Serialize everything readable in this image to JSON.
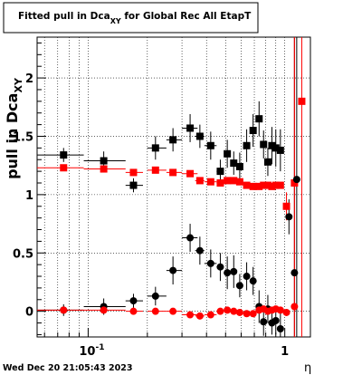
{
  "chart_data": {
    "type": "scatter",
    "title": "Fitted pull in Dca",
    "title_subscript": "XY",
    "title_suffix": " for Global Rec All EtapT",
    "ylabel": "pull in Dca",
    "ylabel_subscript": "XY",
    "xlabel": "η",
    "x_scale": "log",
    "xlim": [
      0.055,
      1.35
    ],
    "ylim": [
      -0.22,
      2.35
    ],
    "grid": true,
    "x_ticks": [
      {
        "value": 0.1,
        "label": "10",
        "exponent": "-1"
      },
      {
        "value": 1,
        "label": "1"
      }
    ],
    "y_ticks": [
      {
        "value": 0,
        "label": "0"
      },
      {
        "value": 0.5,
        "label": "0.5"
      },
      {
        "value": 1,
        "label": "1"
      },
      {
        "value": 1.5,
        "label": "1.5"
      },
      {
        "value": 2,
        "label": "2"
      }
    ],
    "series": [
      {
        "marker": "square",
        "color": "#000000",
        "points": [
          {
            "x": 0.075,
            "y": 1.34,
            "ex": [
              0.055,
              0.095
            ],
            "ey": 0.06
          },
          {
            "x": 0.12,
            "y": 1.29,
            "ex": [
              0.095,
              0.155
            ],
            "ey": 0.08
          },
          {
            "x": 0.17,
            "y": 1.08,
            "ex": [
              0.155,
              0.19
            ],
            "ey": 0.06
          },
          {
            "x": 0.22,
            "y": 1.4,
            "ex": [
              0.2,
              0.25
            ],
            "ey": 0.1
          },
          {
            "x": 0.27,
            "y": 1.47,
            "ex": [
              0.25,
              0.3
            ],
            "ey": 0.1
          },
          {
            "x": 0.33,
            "y": 1.57,
            "ex": [
              0.3,
              0.36
            ],
            "ey": 0.12
          },
          {
            "x": 0.37,
            "y": 1.5,
            "ex": [
              0.35,
              0.39
            ],
            "ey": 0.1
          },
          {
            "x": 0.42,
            "y": 1.42,
            "ex": [
              0.39,
              0.45
            ],
            "ey": 0.12
          },
          {
            "x": 0.47,
            "y": 1.2,
            "ex": [
              0.45,
              0.49
            ],
            "ey": 0.1
          },
          {
            "x": 0.51,
            "y": 1.35,
            "ex": [
              0.49,
              0.53
            ],
            "ey": 0.12
          },
          {
            "x": 0.55,
            "y": 1.27,
            "ex": [
              0.53,
              0.57
            ],
            "ey": 0.1
          },
          {
            "x": 0.59,
            "y": 1.24,
            "ex": [
              0.57,
              0.61
            ],
            "ey": 0.12
          },
          {
            "x": 0.64,
            "y": 1.42,
            "ex": [
              0.62,
              0.66
            ],
            "ey": 0.14
          },
          {
            "x": 0.69,
            "y": 1.55,
            "ex": [
              0.67,
              0.71
            ],
            "ey": 0.14
          },
          {
            "x": 0.74,
            "y": 1.65,
            "ex": [
              0.72,
              0.76
            ],
            "ey": 0.15
          },
          {
            "x": 0.78,
            "y": 1.43,
            "ex": [
              0.76,
              0.8
            ],
            "ey": 0.12
          },
          {
            "x": 0.82,
            "y": 1.28,
            "ex": [
              0.8,
              0.84
            ],
            "ey": 0.12
          },
          {
            "x": 0.86,
            "y": 1.42,
            "ex": [
              0.84,
              0.88
            ],
            "ey": 0.16
          },
          {
            "x": 0.9,
            "y": 1.4,
            "ex": [
              0.88,
              0.92
            ],
            "ey": 0.16
          },
          {
            "x": 0.95,
            "y": 1.38,
            "ex": [
              0.93,
              0.97
            ],
            "ey": 0.18
          }
        ]
      },
      {
        "marker": "square",
        "color": "#ff0000",
        "points": [
          {
            "x": 0.075,
            "y": 1.23,
            "ex": [
              0.055,
              0.095
            ],
            "ey": 0.01
          },
          {
            "x": 0.12,
            "y": 1.22,
            "ex": [
              0.095,
              0.155
            ],
            "ey": 0.01
          },
          {
            "x": 0.17,
            "y": 1.19,
            "ex": [
              0.155,
              0.19
            ],
            "ey": 0.01
          },
          {
            "x": 0.22,
            "y": 1.21,
            "ex": [
              0.2,
              0.25
            ],
            "ey": 0.01
          },
          {
            "x": 0.27,
            "y": 1.19,
            "ex": [
              0.25,
              0.3
            ],
            "ey": 0.01
          },
          {
            "x": 0.33,
            "y": 1.18,
            "ex": [
              0.3,
              0.36
            ],
            "ey": 0.01
          },
          {
            "x": 0.37,
            "y": 1.12,
            "ex": [
              0.35,
              0.39
            ],
            "ey": 0.01
          },
          {
            "x": 0.42,
            "y": 1.11,
            "ex": [
              0.39,
              0.45
            ],
            "ey": 0.01
          },
          {
            "x": 0.47,
            "y": 1.1,
            "ex": [
              0.45,
              0.49
            ],
            "ey": 0.01
          },
          {
            "x": 0.51,
            "y": 1.12,
            "ex": [
              0.49,
              0.53
            ],
            "ey": 0.01
          },
          {
            "x": 0.55,
            "y": 1.12,
            "ex": [
              0.53,
              0.57
            ],
            "ey": 0.01
          },
          {
            "x": 0.59,
            "y": 1.11,
            "ex": [
              0.57,
              0.61
            ],
            "ey": 0.01
          },
          {
            "x": 0.64,
            "y": 1.08,
            "ex": [
              0.62,
              0.66
            ],
            "ey": 0.01
          },
          {
            "x": 0.69,
            "y": 1.07,
            "ex": [
              0.67,
              0.71
            ],
            "ey": 0.01
          },
          {
            "x": 0.74,
            "y": 1.07,
            "ex": [
              0.72,
              0.76
            ],
            "ey": 0.01
          },
          {
            "x": 0.78,
            "y": 1.08,
            "ex": [
              0.76,
              0.8
            ],
            "ey": 0.01
          },
          {
            "x": 0.82,
            "y": 1.08,
            "ex": [
              0.8,
              0.84
            ],
            "ey": 0.01
          },
          {
            "x": 0.86,
            "y": 1.07,
            "ex": [
              0.84,
              0.88
            ],
            "ey": 0.01
          },
          {
            "x": 0.9,
            "y": 1.08,
            "ex": [
              0.88,
              0.92
            ],
            "ey": 0.01
          },
          {
            "x": 0.95,
            "y": 1.08,
            "ex": [
              0.93,
              0.97
            ],
            "ey": 0.01
          },
          {
            "x": 1.02,
            "y": 0.9,
            "ex": [
              1.0,
              1.04
            ],
            "ey": 0.12
          },
          {
            "x": 1.12,
            "y": 1.1,
            "ex": [
              1.1,
              1.14
            ],
            "ey": 2.5
          },
          {
            "x": 1.22,
            "y": 1.8,
            "ex": [
              1.2,
              1.24
            ],
            "ey": 2.5
          }
        ]
      },
      {
        "marker": "circle",
        "color": "#000000",
        "points": [
          {
            "x": 0.075,
            "y": 0.01,
            "ex": [
              0.055,
              0.095
            ],
            "ey": 0.05
          },
          {
            "x": 0.12,
            "y": 0.04,
            "ex": [
              0.095,
              0.155
            ],
            "ey": 0.07
          },
          {
            "x": 0.17,
            "y": 0.09,
            "ex": [
              0.155,
              0.19
            ],
            "ey": 0.06
          },
          {
            "x": 0.22,
            "y": 0.13,
            "ex": [
              0.2,
              0.25
            ],
            "ey": 0.08
          },
          {
            "x": 0.27,
            "y": 0.35,
            "ex": [
              0.25,
              0.3
            ],
            "ey": 0.12
          },
          {
            "x": 0.33,
            "y": 0.63,
            "ex": [
              0.3,
              0.36
            ],
            "ey": 0.12
          },
          {
            "x": 0.37,
            "y": 0.52,
            "ex": [
              0.35,
              0.39
            ],
            "ey": 0.12
          },
          {
            "x": 0.42,
            "y": 0.41,
            "ex": [
              0.39,
              0.45
            ],
            "ey": 0.12
          },
          {
            "x": 0.47,
            "y": 0.38,
            "ex": [
              0.45,
              0.49
            ],
            "ey": 0.12
          },
          {
            "x": 0.51,
            "y": 0.33,
            "ex": [
              0.49,
              0.53
            ],
            "ey": 0.14
          },
          {
            "x": 0.55,
            "y": 0.34,
            "ex": [
              0.53,
              0.57
            ],
            "ey": 0.14
          },
          {
            "x": 0.59,
            "y": 0.22,
            "ex": [
              0.57,
              0.61
            ],
            "ey": 0.1
          },
          {
            "x": 0.64,
            "y": 0.3,
            "ex": [
              0.62,
              0.66
            ],
            "ey": 0.12
          },
          {
            "x": 0.69,
            "y": 0.26,
            "ex": [
              0.67,
              0.71
            ],
            "ey": 0.12
          },
          {
            "x": 0.74,
            "y": 0.04,
            "ex": [
              0.72,
              0.76
            ],
            "ey": 0.14
          },
          {
            "x": 0.78,
            "y": -0.09,
            "ex": [
              0.76,
              0.8
            ],
            "ey": 0.12
          },
          {
            "x": 0.82,
            "y": 0.02,
            "ex": [
              0.8,
              0.84
            ],
            "ey": 0.12
          },
          {
            "x": 0.86,
            "y": -0.1,
            "ex": [
              0.84,
              0.88
            ],
            "ey": 0.1
          },
          {
            "x": 0.9,
            "y": -0.08,
            "ex": [
              0.88,
              0.92
            ],
            "ey": 0.12
          },
          {
            "x": 0.95,
            "y": -0.15,
            "ex": [
              0.93,
              0.97
            ],
            "ey": 0.14
          },
          {
            "x": 1.05,
            "y": 0.81,
            "ex": [
              1.03,
              1.07
            ],
            "ey": 0.15
          },
          {
            "x": 1.12,
            "y": 0.33,
            "ex": [
              1.1,
              1.14
            ],
            "ey": 2.5
          },
          {
            "x": 1.15,
            "y": 1.13,
            "ex": [
              1.13,
              1.17
            ],
            "ey": 2.5
          }
        ]
      },
      {
        "marker": "circle",
        "color": "#ff0000",
        "points": [
          {
            "x": 0.075,
            "y": 0.01,
            "ex": [
              0.055,
              0.095
            ],
            "ey": 0.01
          },
          {
            "x": 0.12,
            "y": 0.01,
            "ex": [
              0.095,
              0.155
            ],
            "ey": 0.01
          },
          {
            "x": 0.17,
            "y": 0.0,
            "ex": [
              0.155,
              0.19
            ],
            "ey": 0.01
          },
          {
            "x": 0.22,
            "y": 0.0,
            "ex": [
              0.2,
              0.25
            ],
            "ey": 0.01
          },
          {
            "x": 0.27,
            "y": 0.0,
            "ex": [
              0.25,
              0.3
            ],
            "ey": 0.01
          },
          {
            "x": 0.33,
            "y": -0.03,
            "ex": [
              0.3,
              0.36
            ],
            "ey": 0.01
          },
          {
            "x": 0.37,
            "y": -0.04,
            "ex": [
              0.35,
              0.39
            ],
            "ey": 0.01
          },
          {
            "x": 0.42,
            "y": -0.03,
            "ex": [
              0.39,
              0.45
            ],
            "ey": 0.01
          },
          {
            "x": 0.47,
            "y": 0.0,
            "ex": [
              0.45,
              0.49
            ],
            "ey": 0.01
          },
          {
            "x": 0.51,
            "y": 0.01,
            "ex": [
              0.49,
              0.53
            ],
            "ey": 0.01
          },
          {
            "x": 0.55,
            "y": 0.0,
            "ex": [
              0.53,
              0.57
            ],
            "ey": 0.01
          },
          {
            "x": 0.59,
            "y": -0.01,
            "ex": [
              0.57,
              0.61
            ],
            "ey": 0.01
          },
          {
            "x": 0.64,
            "y": -0.02,
            "ex": [
              0.62,
              0.66
            ],
            "ey": 0.01
          },
          {
            "x": 0.69,
            "y": -0.02,
            "ex": [
              0.67,
              0.71
            ],
            "ey": 0.01
          },
          {
            "x": 0.74,
            "y": 0.01,
            "ex": [
              0.72,
              0.76
            ],
            "ey": 0.01
          },
          {
            "x": 0.78,
            "y": 0.02,
            "ex": [
              0.76,
              0.8
            ],
            "ey": 0.01
          },
          {
            "x": 0.82,
            "y": 0.0,
            "ex": [
              0.8,
              0.84
            ],
            "ey": 0.01
          },
          {
            "x": 0.86,
            "y": 0.01,
            "ex": [
              0.84,
              0.88
            ],
            "ey": 0.01
          },
          {
            "x": 0.9,
            "y": 0.02,
            "ex": [
              0.88,
              0.92
            ],
            "ey": 0.01
          },
          {
            "x": 0.95,
            "y": 0.01,
            "ex": [
              0.93,
              0.97
            ],
            "ey": 0.01
          },
          {
            "x": 1.02,
            "y": -0.01,
            "ex": [
              1.0,
              1.04
            ],
            "ey": 0.03
          },
          {
            "x": 1.12,
            "y": 0.04,
            "ex": [
              1.1,
              1.14
            ],
            "ey": 2.5
          }
        ]
      }
    ]
  },
  "footer": {
    "timestamp": "Wed Dec 20 21:05:43 2023"
  }
}
